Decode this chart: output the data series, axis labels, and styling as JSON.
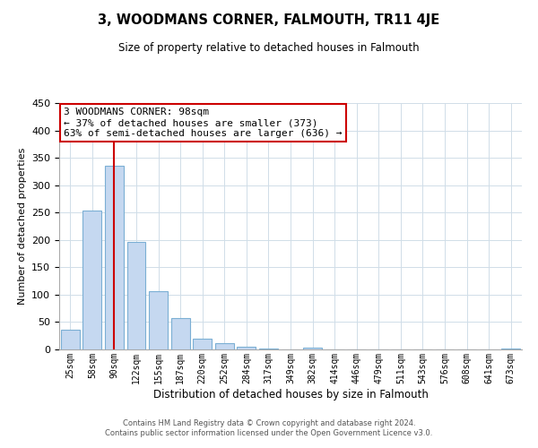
{
  "title": "3, WOODMANS CORNER, FALMOUTH, TR11 4JE",
  "subtitle": "Size of property relative to detached houses in Falmouth",
  "xlabel": "Distribution of detached houses by size in Falmouth",
  "ylabel": "Number of detached properties",
  "bar_labels": [
    "25sqm",
    "58sqm",
    "90sqm",
    "122sqm",
    "155sqm",
    "187sqm",
    "220sqm",
    "252sqm",
    "284sqm",
    "317sqm",
    "349sqm",
    "382sqm",
    "414sqm",
    "446sqm",
    "479sqm",
    "511sqm",
    "543sqm",
    "576sqm",
    "608sqm",
    "641sqm",
    "673sqm"
  ],
  "bar_values": [
    36,
    254,
    335,
    196,
    106,
    57,
    20,
    11,
    5,
    2,
    0,
    3,
    0,
    0,
    0,
    0,
    0,
    0,
    0,
    0,
    2
  ],
  "bar_color": "#c5d8f0",
  "bar_edge_color": "#7bafd4",
  "vline_x_index": 2,
  "vline_color": "#cc0000",
  "annotation_line1": "3 WOODMANS CORNER: 98sqm",
  "annotation_line2": "← 37% of detached houses are smaller (373)",
  "annotation_line3": "63% of semi-detached houses are larger (636) →",
  "annotation_box_color": "#ffffff",
  "annotation_box_edge": "#cc0000",
  "ylim": [
    0,
    450
  ],
  "yticks": [
    0,
    50,
    100,
    150,
    200,
    250,
    300,
    350,
    400,
    450
  ],
  "background_color": "#ffffff",
  "grid_color": "#d0dde8",
  "footer_line1": "Contains HM Land Registry data © Crown copyright and database right 2024.",
  "footer_line2": "Contains public sector information licensed under the Open Government Licence v3.0."
}
